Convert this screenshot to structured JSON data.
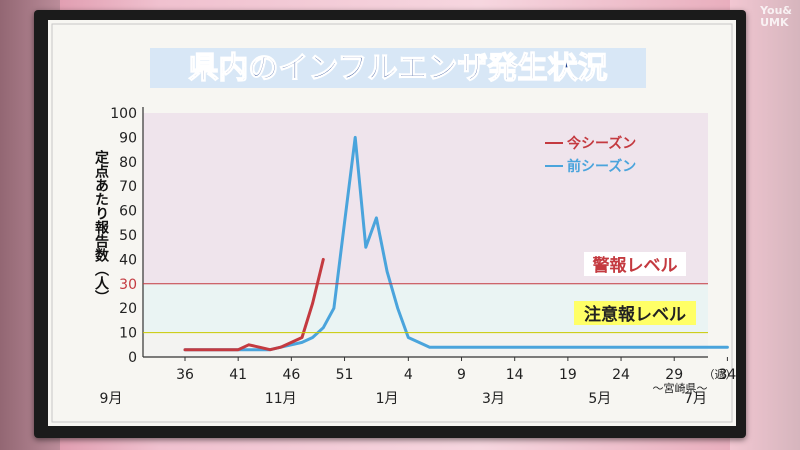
{
  "watermark": {
    "line1": "You&",
    "line2": "UMK"
  },
  "chart_data": {
    "type": "line",
    "title": "県内のインフルエンザ発生状況",
    "ylabel": "定点あたり報告数（人）",
    "xunit": "（週）",
    "region": "～宮崎県～",
    "yticks": [
      0,
      10,
      20,
      30,
      40,
      50,
      60,
      70,
      80,
      90,
      100
    ],
    "ylim": [
      0,
      100
    ],
    "x_categories": [
      "36",
      "37",
      "38",
      "39",
      "40",
      "41",
      "42",
      "43",
      "44",
      "45",
      "46",
      "47",
      "48",
      "49",
      "50",
      "51",
      "52",
      "53",
      "1",
      "2",
      "3",
      "4",
      "5",
      "6",
      "7",
      "8",
      "9",
      "10",
      "11",
      "12",
      "13",
      "14",
      "15",
      "16",
      "17",
      "18",
      "19",
      "20",
      "21",
      "22",
      "23",
      "24",
      "25",
      "26",
      "27",
      "28",
      "29",
      "30",
      "31",
      "32",
      "33",
      "34"
    ],
    "x_tick_labels": [
      "36",
      "41",
      "46",
      "51",
      "4",
      "9",
      "14",
      "19",
      "24",
      "29",
      "34"
    ],
    "month_labels": [
      {
        "label": "9月",
        "at_index": -1
      },
      {
        "label": "11月",
        "at_index": 9
      },
      {
        "label": "1月",
        "at_index": 19
      },
      {
        "label": "3月",
        "at_index": 29
      },
      {
        "label": "5月",
        "at_index": 39
      },
      {
        "label": "7月",
        "at_index": 48
      }
    ],
    "series": [
      {
        "name": "今シーズン",
        "color": "#c43a40",
        "values": [
          3,
          3,
          3,
          3,
          3,
          3,
          5,
          4,
          3,
          4,
          6,
          8,
          22,
          40
        ]
      },
      {
        "name": "前シーズン",
        "color": "#4aa4dc",
        "values": [
          3,
          3,
          3,
          3,
          3,
          3,
          3,
          3,
          3,
          4,
          5,
          6,
          8,
          12,
          20,
          55,
          90,
          45,
          57,
          35,
          20,
          8,
          6,
          4,
          4,
          4,
          4,
          4,
          4,
          4,
          4,
          4,
          4,
          4,
          4,
          4,
          4,
          4,
          4,
          4,
          4,
          4,
          4,
          4,
          4,
          4,
          4,
          4,
          4,
          4,
          4,
          4
        ]
      }
    ],
    "levels": [
      {
        "label": "警報レベル",
        "value": 30,
        "color": "#c43a40"
      },
      {
        "label": "注意報レベル",
        "value": 10,
        "color": "#c9c800"
      }
    ],
    "highlight_tick": "30",
    "colors": {
      "panel_bg": "#f7f6f2",
      "alarm_zone": "#efe4ec",
      "advisory_zone": "#eaf4f3",
      "normal_zone": "#f3f3f1"
    }
  }
}
